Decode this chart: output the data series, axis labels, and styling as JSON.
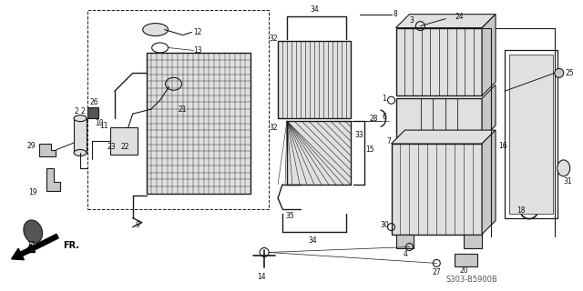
{
  "bg_color": "#ffffff",
  "line_color": "#1a1a1a",
  "text_color": "#111111",
  "gray_fill": "#c8c8c8",
  "light_gray": "#e0e0e0",
  "dark_gray": "#555555",
  "watermark": "S303-B5900B",
  "figsize": [
    6.4,
    3.2
  ],
  "dpi": 100
}
